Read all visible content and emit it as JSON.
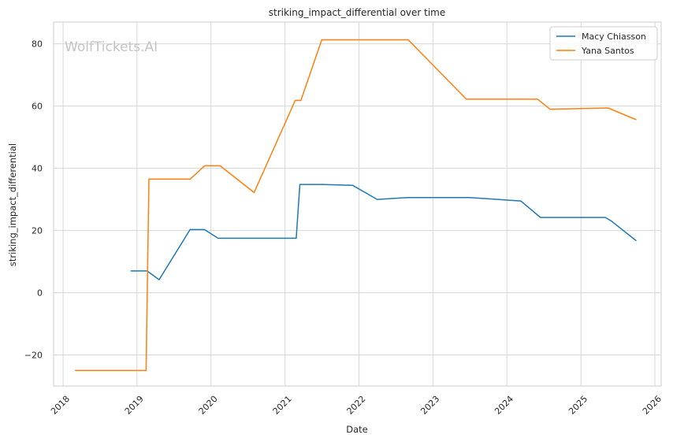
{
  "chart_data": {
    "type": "line",
    "title": "striking_impact_differential over time",
    "xlabel": "Date",
    "ylabel": "striking_impact_differential",
    "watermark": "WolfTickets.AI",
    "x_ticks": [
      "2018",
      "2019",
      "2020",
      "2021",
      "2022",
      "2023",
      "2024",
      "2025",
      "2026"
    ],
    "y_ticks": [
      "−20",
      "0",
      "20",
      "40",
      "60",
      "80"
    ],
    "xlim": [
      "2017-11-15",
      "2026-02-01"
    ],
    "ylim": [
      -30,
      87
    ],
    "grid": true,
    "legend_position": "top-right",
    "series": [
      {
        "name": "Macy Chiasson",
        "color": "#1f77b4",
        "points": [
          [
            "2018-11-30",
            7.0
          ],
          [
            "2019-02-20",
            7.0
          ],
          [
            "2019-04-20",
            4.2
          ],
          [
            "2019-09-20",
            20.3
          ],
          [
            "2019-11-30",
            20.3
          ],
          [
            "2020-02-05",
            17.5
          ],
          [
            "2021-02-25",
            17.5
          ],
          [
            "2021-03-15",
            34.8
          ],
          [
            "2021-07-01",
            34.8
          ],
          [
            "2021-12-01",
            34.5
          ],
          [
            "2022-04-01",
            30.0
          ],
          [
            "2022-09-01",
            30.6
          ],
          [
            "2023-07-01",
            30.6
          ],
          [
            "2024-03-10",
            29.5
          ],
          [
            "2024-06-15",
            24.2
          ],
          [
            "2025-05-01",
            24.2
          ],
          [
            "2025-06-01",
            23.0
          ],
          [
            "2025-10-01",
            16.7
          ]
        ]
      },
      {
        "name": "Yana Santos",
        "color": "#ff7f0e",
        "points": [
          [
            "2018-03-01",
            -25.0
          ],
          [
            "2019-02-15",
            -25.0
          ],
          [
            "2019-03-01",
            36.5
          ],
          [
            "2019-09-20",
            36.5
          ],
          [
            "2019-12-01",
            40.8
          ],
          [
            "2020-02-15",
            40.8
          ],
          [
            "2020-08-01",
            32.2
          ],
          [
            "2021-02-20",
            61.8
          ],
          [
            "2021-03-20",
            61.8
          ],
          [
            "2021-07-01",
            81.3
          ],
          [
            "2022-09-01",
            81.3
          ],
          [
            "2023-06-15",
            62.2
          ],
          [
            "2024-06-01",
            62.2
          ],
          [
            "2024-08-01",
            59.0
          ],
          [
            "2025-05-15",
            59.4
          ],
          [
            "2025-10-01",
            55.6
          ]
        ]
      }
    ]
  }
}
